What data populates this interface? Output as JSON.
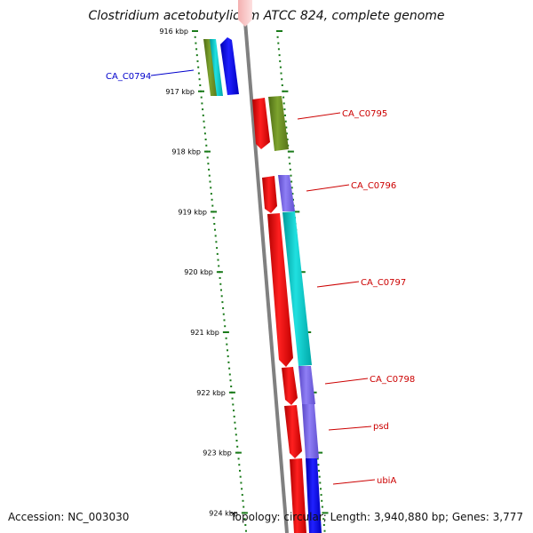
{
  "title": "Clostridium acetobutylicum ATCC 824, complete genome",
  "accession": "Accession: NC_003030",
  "topology": "Topology: circular; Length: 3,940,880 bp; Genes: 3,777",
  "colors": {
    "backbone": "#808080",
    "ticks": "#1a7a1a",
    "label_reverse": "#0000cc",
    "label_forward": "#cc0000",
    "red": "#ff0000",
    "olive": "#6b8e23",
    "cyan": "#00cccc",
    "blue": "#0000ff",
    "purple": "#7b68ee"
  },
  "ticks": [
    "916 kbp",
    "917 kbp",
    "918 kbp",
    "919 kbp",
    "920 kbp",
    "921 kbp",
    "922 kbp",
    "923 kbp",
    "924 kbp"
  ],
  "features": [
    {
      "label": "CA_C0794",
      "strand": "reverse"
    },
    {
      "label": "CA_C0795",
      "strand": "forward"
    },
    {
      "label": "CA_C0796",
      "strand": "forward"
    },
    {
      "label": "CA_C0797",
      "strand": "forward"
    },
    {
      "label": "CA_C0798",
      "strand": "forward"
    },
    {
      "label": "psd",
      "strand": "forward"
    },
    {
      "label": "ubiA",
      "strand": "forward"
    }
  ]
}
